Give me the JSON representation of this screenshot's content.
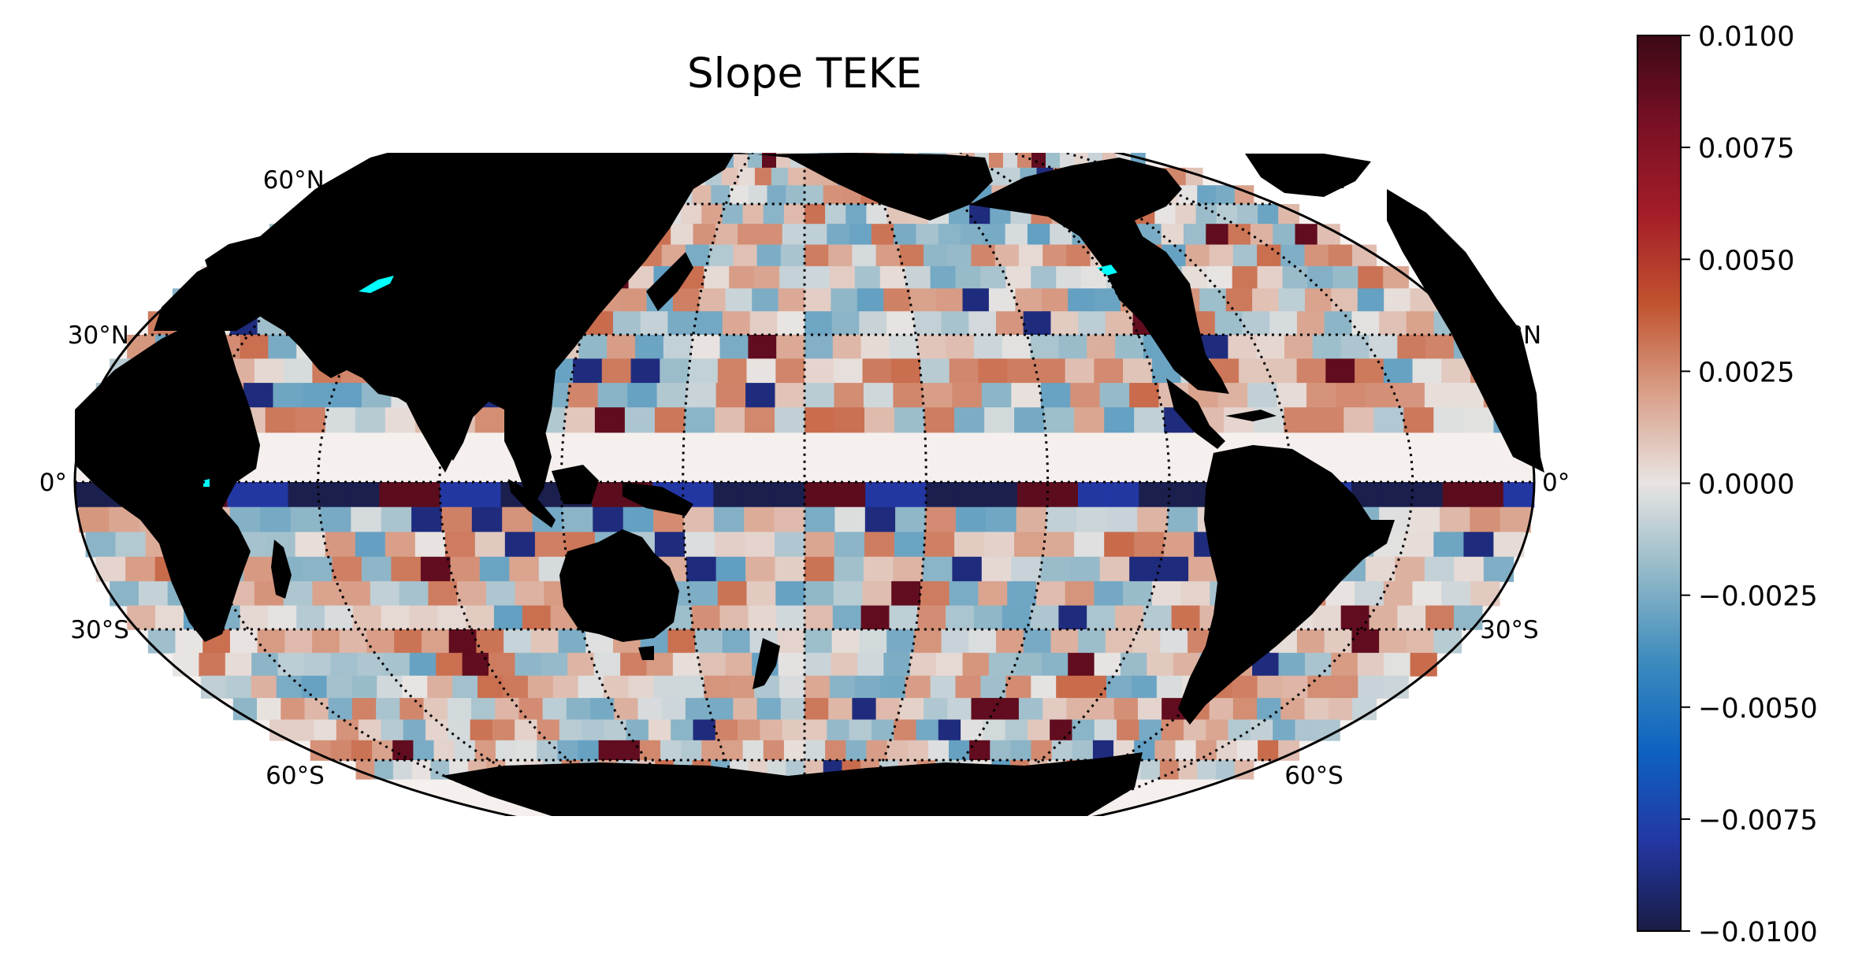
{
  "title": "Slope TEKE",
  "map": {
    "projection": "mollweide",
    "land_color": "#000000",
    "lake_color": "#00ffff",
    "gridline_style": "dotted",
    "lat_labels_left": [
      "60°N",
      "30°N",
      "0°",
      "30°S",
      "60°S"
    ],
    "lat_labels_right": [
      "60°N",
      "30°N",
      "0°",
      "30°S",
      "60°S"
    ],
    "lat_label_values": [
      60,
      30,
      0,
      -30,
      -60
    ]
  },
  "colorbar": {
    "vmin": -0.01,
    "vmax": 0.01,
    "colormap": "balance",
    "stops": [
      "#1a1c44",
      "#2337a3",
      "#0d62c1",
      "#3b8bbd",
      "#92b8c8",
      "#e8e4e2",
      "#d9a08a",
      "#c1532f",
      "#a41d28",
      "#7a1025",
      "#3c0916"
    ],
    "ticks": [
      {
        "value": 0.01,
        "label": "0.0100"
      },
      {
        "value": 0.0075,
        "label": "0.0075"
      },
      {
        "value": 0.005,
        "label": "0.0050"
      },
      {
        "value": 0.0025,
        "label": "0.0025"
      },
      {
        "value": 0,
        "label": "0.0000"
      },
      {
        "value": -0.0025,
        "label": "−0.0025"
      },
      {
        "value": -0.005,
        "label": "−0.0050"
      },
      {
        "value": -0.0075,
        "label": "−0.0075"
      },
      {
        "value": -0.01,
        "label": "−0.0100"
      }
    ]
  }
}
